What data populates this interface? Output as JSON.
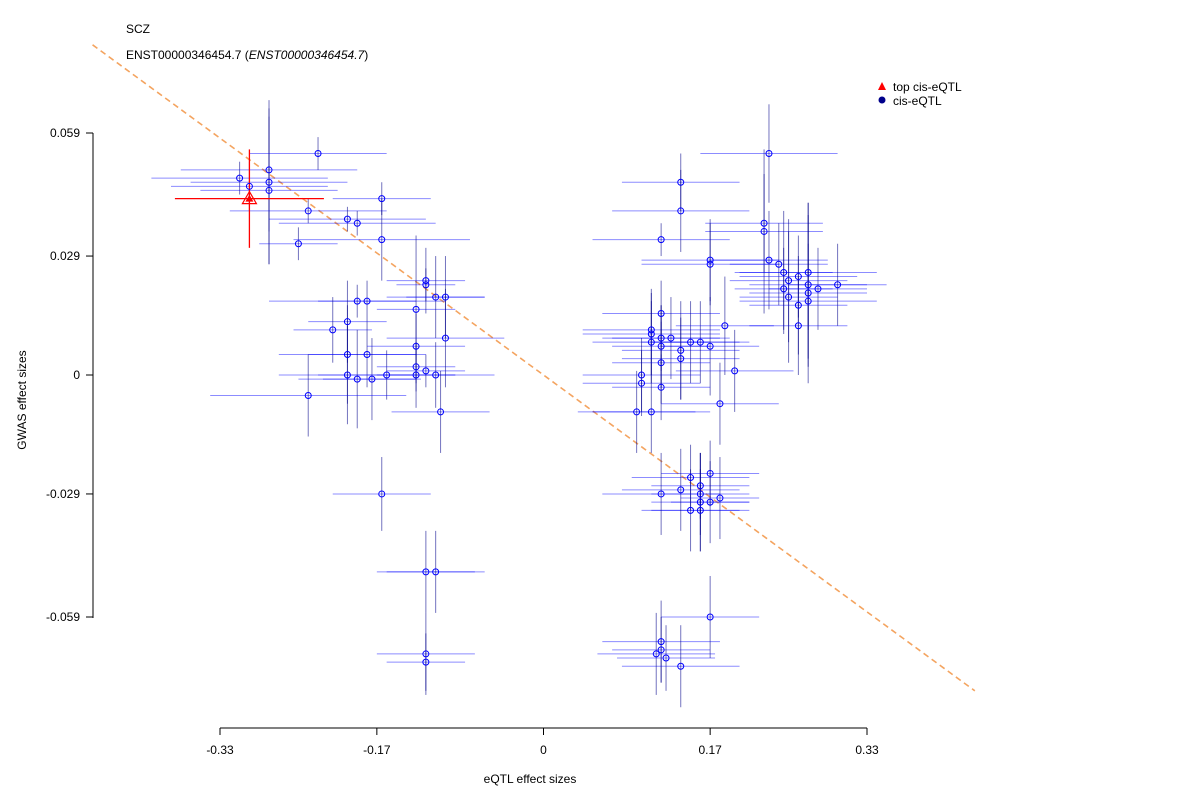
{
  "chart_data": {
    "type": "scatter",
    "title": "SCZ",
    "subtitle_main": "ENST00000346454.7",
    "subtitle_italic": "ENST00000346454.7",
    "xlabel": "eQTL effect sizes",
    "ylabel": "GWAS effect sizes",
    "xlim": [
      -0.33,
      0.428
    ],
    "ylim": [
      -0.086,
      0.066
    ],
    "x_ticks": [
      -0.33,
      -0.17,
      0,
      0.17,
      0.33
    ],
    "x_tick_labels": [
      "-0.33",
      "-0.17",
      "0",
      "0.17",
      "0.33"
    ],
    "y_ticks": [
      -0.059,
      -0.029,
      0,
      0.029,
      0.059
    ],
    "y_tick_labels": [
      "-0.059",
      "-0.029",
      "0",
      "0.029",
      "0.059"
    ],
    "grid": false,
    "legend_position": "top-right",
    "legend": [
      {
        "label": "top cis-eQTL",
        "shape": "triangle",
        "color": "#ff0000"
      },
      {
        "label": "cis-eQTL",
        "shape": "circle",
        "color": "#00008b"
      }
    ],
    "fit_line": {
      "slope": -0.175,
      "intercept": 0.0,
      "color": "#f4a460"
    },
    "series": [
      {
        "name": "top cis-eQTL",
        "color": "#ff0000",
        "points": [
          [
            -0.3,
            0.043,
            0.076,
            0.012
          ]
        ]
      },
      {
        "name": "cis-eQTL",
        "color": "#0000ff",
        "points": [
          [
            -0.31,
            0.048,
            0.09,
            0.004
          ],
          [
            -0.3,
            0.046,
            0.08,
            0.006
          ],
          [
            -0.28,
            0.05,
            0.09,
            0.015
          ],
          [
            -0.28,
            0.047,
            0.08,
            0.02
          ],
          [
            -0.28,
            0.045,
            0.07,
            0.018
          ],
          [
            -0.23,
            0.054,
            0.07,
            0.004
          ],
          [
            -0.24,
            0.04,
            0.08,
            0.003
          ],
          [
            -0.25,
            0.032,
            0.04,
            0.004
          ],
          [
            -0.2,
            0.038,
            0.08,
            0.003
          ],
          [
            -0.19,
            0.037,
            0.08,
            0.003
          ],
          [
            -0.165,
            0.043,
            0.05,
            0.004
          ],
          [
            -0.165,
            0.033,
            0.09,
            0.01
          ],
          [
            -0.19,
            0.018,
            0.09,
            0.004
          ],
          [
            -0.18,
            0.018,
            0.05,
            0.005
          ],
          [
            -0.2,
            0.013,
            0.04,
            0.01
          ],
          [
            -0.215,
            0.011,
            0.04,
            0.008
          ],
          [
            -0.2,
            0.005,
            0.07,
            0.012
          ],
          [
            -0.18,
            0.005,
            0.06,
            0.008
          ],
          [
            -0.2,
            0.0,
            0.07,
            0.012
          ],
          [
            -0.19,
            -0.001,
            0.06,
            0.012
          ],
          [
            -0.175,
            -0.001,
            0.05,
            0.01
          ],
          [
            -0.16,
            0.0,
            0.07,
            0.006
          ],
          [
            -0.13,
            0.007,
            0.05,
            0.008
          ],
          [
            -0.13,
            0.002,
            0.04,
            0.006
          ],
          [
            -0.13,
            0.0,
            0.04,
            0.008
          ],
          [
            -0.13,
            0.016,
            0.04,
            0.018
          ],
          [
            -0.12,
            0.022,
            0.03,
            0.004
          ],
          [
            -0.12,
            0.023,
            0.04,
            0.008
          ],
          [
            -0.11,
            0.019,
            0.05,
            0.01
          ],
          [
            -0.1,
            0.019,
            0.04,
            0.01
          ],
          [
            -0.1,
            0.009,
            0.06,
            0.012
          ],
          [
            -0.12,
            0.001,
            0.04,
            0.004
          ],
          [
            -0.11,
            0.0,
            0.06,
            0.008
          ],
          [
            -0.105,
            -0.009,
            0.05,
            0.01
          ],
          [
            -0.24,
            -0.005,
            0.1,
            0.01
          ],
          [
            -0.165,
            -0.029,
            0.05,
            0.009
          ],
          [
            -0.12,
            -0.048,
            0.05,
            0.01
          ],
          [
            -0.11,
            -0.048,
            0.05,
            0.01
          ],
          [
            -0.12,
            -0.068,
            0.05,
            0.01
          ],
          [
            -0.12,
            -0.07,
            0.04,
            0.007
          ],
          [
            0.14,
            0.047,
            0.06,
            0.007
          ],
          [
            0.14,
            0.04,
            0.07,
            0.01
          ],
          [
            0.12,
            0.033,
            0.07,
            0.004
          ],
          [
            0.12,
            0.015,
            0.06,
            0.008
          ],
          [
            0.11,
            0.011,
            0.07,
            0.01
          ],
          [
            0.11,
            0.01,
            0.07,
            0.01
          ],
          [
            0.11,
            0.008,
            0.06,
            0.01
          ],
          [
            0.12,
            0.009,
            0.06,
            0.008
          ],
          [
            0.12,
            0.007,
            0.05,
            0.01
          ],
          [
            0.13,
            0.009,
            0.06,
            0.01
          ],
          [
            0.15,
            0.008,
            0.05,
            0.01
          ],
          [
            0.14,
            0.006,
            0.06,
            0.012
          ],
          [
            0.16,
            0.008,
            0.05,
            0.01
          ],
          [
            0.17,
            0.007,
            0.05,
            0.012
          ],
          [
            0.185,
            0.012,
            0.05,
            0.012
          ],
          [
            0.14,
            0.004,
            0.06,
            0.01
          ],
          [
            0.12,
            0.003,
            0.05,
            0.01
          ],
          [
            0.1,
            0.0,
            0.06,
            0.009
          ],
          [
            0.1,
            -0.002,
            0.06,
            0.008
          ],
          [
            0.12,
            -0.003,
            0.05,
            0.008
          ],
          [
            0.11,
            -0.009,
            0.06,
            0.01
          ],
          [
            0.095,
            -0.009,
            0.06,
            0.01
          ],
          [
            0.195,
            0.001,
            0.06,
            0.01
          ],
          [
            0.18,
            -0.007,
            0.06,
            0.01
          ],
          [
            0.225,
            0.035,
            0.06,
            0.02
          ],
          [
            0.225,
            0.037,
            0.06,
            0.012
          ],
          [
            0.23,
            0.054,
            0.07,
            0.012
          ],
          [
            0.17,
            0.028,
            0.07,
            0.01
          ],
          [
            0.17,
            0.027,
            0.07,
            0.01
          ],
          [
            0.23,
            0.028,
            0.06,
            0.012
          ],
          [
            0.24,
            0.027,
            0.05,
            0.01
          ],
          [
            0.245,
            0.025,
            0.05,
            0.015
          ],
          [
            0.25,
            0.023,
            0.06,
            0.015
          ],
          [
            0.26,
            0.024,
            0.06,
            0.01
          ],
          [
            0.27,
            0.025,
            0.07,
            0.014
          ],
          [
            0.27,
            0.022,
            0.06,
            0.02
          ],
          [
            0.27,
            0.02,
            0.06,
            0.022
          ],
          [
            0.27,
            0.018,
            0.07,
            0.014
          ],
          [
            0.28,
            0.021,
            0.05,
            0.01
          ],
          [
            0.3,
            0.022,
            0.05,
            0.01
          ],
          [
            0.25,
            0.019,
            0.05,
            0.016
          ],
          [
            0.26,
            0.017,
            0.05,
            0.012
          ],
          [
            0.26,
            0.012,
            0.05,
            0.012
          ],
          [
            0.245,
            0.021,
            0.05,
            0.01
          ],
          [
            0.15,
            -0.025,
            0.06,
            0.008
          ],
          [
            0.16,
            -0.027,
            0.05,
            0.008
          ],
          [
            0.17,
            -0.024,
            0.05,
            0.008
          ],
          [
            0.18,
            -0.03,
            0.04,
            0.01
          ],
          [
            0.16,
            -0.031,
            0.05,
            0.012
          ],
          [
            0.17,
            -0.031,
            0.04,
            0.01
          ],
          [
            0.15,
            -0.033,
            0.05,
            0.01
          ],
          [
            0.16,
            -0.033,
            0.05,
            0.01
          ],
          [
            0.14,
            -0.028,
            0.06,
            0.01
          ],
          [
            0.16,
            -0.029,
            0.05,
            0.01
          ],
          [
            0.12,
            -0.029,
            0.06,
            0.01
          ],
          [
            0.17,
            -0.059,
            0.05,
            0.01
          ],
          [
            0.12,
            -0.065,
            0.06,
            0.01
          ],
          [
            0.12,
            -0.067,
            0.05,
            0.008
          ],
          [
            0.125,
            -0.069,
            0.05,
            0.008
          ],
          [
            0.14,
            -0.071,
            0.06,
            0.01
          ],
          [
            0.115,
            -0.068,
            0.06,
            0.01
          ]
        ]
      }
    ]
  }
}
